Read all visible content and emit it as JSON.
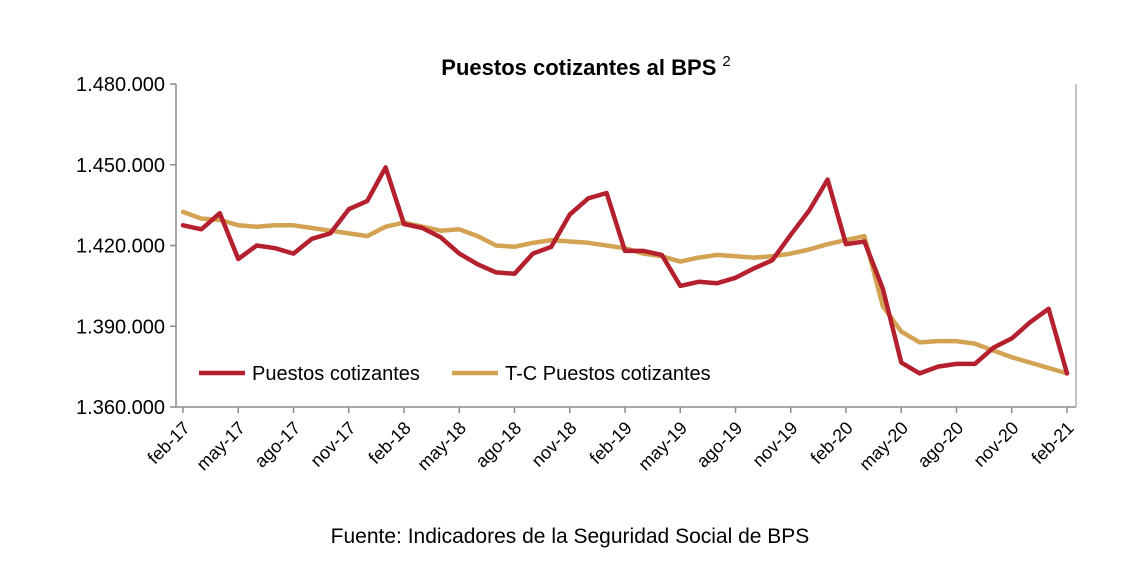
{
  "chart_data": {
    "type": "line",
    "title": "Puestos cotizantes al BPS",
    "title_superscript": "2",
    "source": "Fuente: Indicadores de la Seguridad Social de BPS",
    "ylim": [
      1360000,
      1480000
    ],
    "yticks": [
      1360000,
      1390000,
      1420000,
      1450000,
      1480000
    ],
    "ytick_labels": [
      "1.360.000",
      "1.390.000",
      "1.420.000",
      "1.450.000",
      "1.480.000"
    ],
    "grid": false,
    "legend_position": "bottom-left inside",
    "x": [
      "feb-17",
      "mar-17",
      "abr-17",
      "may-17",
      "jun-17",
      "jul-17",
      "ago-17",
      "sep-17",
      "oct-17",
      "nov-17",
      "dic-17",
      "ene-18",
      "feb-18",
      "mar-18",
      "abr-18",
      "may-18",
      "jun-18",
      "jul-18",
      "ago-18",
      "sep-18",
      "oct-18",
      "nov-18",
      "dic-18",
      "ene-19",
      "feb-19",
      "mar-19",
      "abr-19",
      "may-19",
      "jun-19",
      "jul-19",
      "ago-19",
      "sep-19",
      "oct-19",
      "nov-19",
      "dic-19",
      "ene-20",
      "feb-20",
      "mar-20",
      "abr-20",
      "may-20",
      "jun-20",
      "jul-20",
      "ago-20",
      "sep-20",
      "oct-20",
      "nov-20",
      "dic-20",
      "ene-21",
      "feb-21"
    ],
    "xtick_labels": [
      "feb-17",
      "may-17",
      "ago-17",
      "nov-17",
      "feb-18",
      "may-18",
      "ago-18",
      "nov-18",
      "feb-19",
      "may-19",
      "ago-19",
      "nov-19",
      "feb-20",
      "may-20",
      "ago-20",
      "nov-20",
      "feb-21"
    ],
    "series": [
      {
        "name": "Puestos cotizantes",
        "color": "#B5202E",
        "values": [
          1427500,
          1426000,
          1432000,
          1415000,
          1420000,
          1419000,
          1417000,
          1422500,
          1424500,
          1433500,
          1436500,
          1449000,
          1428000,
          1426500,
          1423000,
          1417000,
          1413000,
          1410000,
          1409500,
          1417000,
          1419500,
          1431500,
          1437500,
          1439500,
          1418000,
          1418000,
          1416500,
          1405000,
          1406500,
          1406000,
          1408000,
          1411500,
          1414500,
          1424000,
          1433000,
          1444500,
          1420500,
          1421500,
          1404000,
          1376500,
          1372500,
          1375000,
          1376000,
          1376000,
          1382000,
          1385500,
          1391500,
          1396500,
          1372500
        ]
      },
      {
        "name": "T-C Puestos cotizantes",
        "color": "#D4A253",
        "values": [
          1432500,
          1430000,
          1429500,
          1427500,
          1427000,
          1427500,
          1427500,
          1426500,
          1425500,
          1424500,
          1423500,
          1427000,
          1428500,
          1427000,
          1425500,
          1426000,
          1423500,
          1420000,
          1419500,
          1421000,
          1422000,
          1421500,
          1421000,
          1420000,
          1419000,
          1417000,
          1416000,
          1414000,
          1415500,
          1416500,
          1416000,
          1415500,
          1416000,
          1417000,
          1418500,
          1420500,
          1422000,
          1423500,
          1397500,
          1388000,
          1384000,
          1384500,
          1384500,
          1383500,
          1381000,
          1378500,
          1376500,
          1374500,
          1372500
        ]
      }
    ]
  }
}
